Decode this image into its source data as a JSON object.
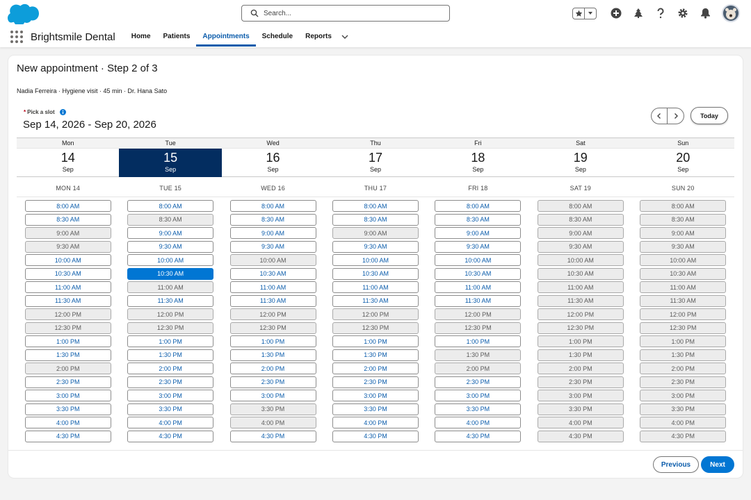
{
  "header": {
    "search_placeholder": "Search...",
    "icons": [
      "favorites-star-icon",
      "add-icon",
      "trailhead-icon",
      "help-icon",
      "settings-icon",
      "notifications-bell-icon",
      "user-avatar"
    ]
  },
  "app": {
    "name": "Brightsmile Dental",
    "nav": [
      {
        "label": "Home",
        "active": false
      },
      {
        "label": "Patients",
        "active": false
      },
      {
        "label": "Appointments",
        "active": true
      },
      {
        "label": "Schedule",
        "active": false
      },
      {
        "label": "Reports",
        "active": false
      }
    ]
  },
  "page": {
    "title": "New appointment · Step 2 of 3",
    "subtitle": "Nadia Ferreira · Hygiene visit · 45 min · Dr. Hana Sato",
    "pick_label": "Pick a slot",
    "required_marker": "*",
    "date_range": "Sep 14, 2026 - Sep 20, 2026",
    "today_label": "Today",
    "previous_label": "Previous",
    "next_label": "Next"
  },
  "colors": {
    "brand_blue": "#0176d3",
    "selected_day": "#032d60",
    "link_blue": "#0b5cab"
  },
  "days": [
    {
      "dow": "Mon",
      "num": "14",
      "mon": "Sep",
      "col": "MON 14",
      "selected": false
    },
    {
      "dow": "Tue",
      "num": "15",
      "mon": "Sep",
      "col": "TUE 15",
      "selected": true
    },
    {
      "dow": "Wed",
      "num": "16",
      "mon": "Sep",
      "col": "WED 16",
      "selected": false
    },
    {
      "dow": "Thu",
      "num": "17",
      "mon": "Sep",
      "col": "THU 17",
      "selected": false
    },
    {
      "dow": "Fri",
      "num": "18",
      "mon": "Sep",
      "col": "FRI 18",
      "selected": false
    },
    {
      "dow": "Sat",
      "num": "19",
      "mon": "Sep",
      "col": "SAT 19",
      "selected": false
    },
    {
      "dow": "Sun",
      "num": "20",
      "mon": "Sep",
      "col": "SUN 20",
      "selected": false
    }
  ],
  "times": [
    "8:00 AM",
    "8:30 AM",
    "9:00 AM",
    "9:30 AM",
    "10:00 AM",
    "10:30 AM",
    "11:00 AM",
    "11:30 AM",
    "12:00 PM",
    "12:30 PM",
    "1:00 PM",
    "1:30 PM",
    "2:00 PM",
    "2:30 PM",
    "3:00 PM",
    "3:30 PM",
    "4:00 PM",
    "4:30 PM"
  ],
  "availability": [
    [
      "a",
      "a",
      "o",
      "o",
      "a",
      "a",
      "a",
      "a",
      "o",
      "o",
      "a",
      "a",
      "o",
      "a",
      "a",
      "a",
      "a",
      "a"
    ],
    [
      "a",
      "o",
      "a",
      "a",
      "a",
      "s",
      "o",
      "a",
      "o",
      "o",
      "a",
      "a",
      "a",
      "a",
      "a",
      "a",
      "a",
      "a"
    ],
    [
      "a",
      "a",
      "a",
      "a",
      "o",
      "a",
      "a",
      "a",
      "o",
      "o",
      "a",
      "a",
      "a",
      "a",
      "a",
      "o",
      "o",
      "a"
    ],
    [
      "a",
      "a",
      "o",
      "a",
      "a",
      "a",
      "a",
      "a",
      "o",
      "o",
      "a",
      "a",
      "a",
      "a",
      "a",
      "a",
      "a",
      "a"
    ],
    [
      "a",
      "a",
      "a",
      "a",
      "a",
      "a",
      "a",
      "a",
      "o",
      "o",
      "a",
      "o",
      "o",
      "a",
      "a",
      "a",
      "a",
      "a"
    ],
    [
      "o",
      "o",
      "o",
      "o",
      "o",
      "o",
      "o",
      "o",
      "o",
      "o",
      "o",
      "o",
      "o",
      "o",
      "o",
      "o",
      "o",
      "o"
    ],
    [
      "o",
      "o",
      "o",
      "o",
      "o",
      "o",
      "o",
      "o",
      "o",
      "o",
      "o",
      "o",
      "o",
      "o",
      "o",
      "o",
      "o",
      "o"
    ]
  ]
}
